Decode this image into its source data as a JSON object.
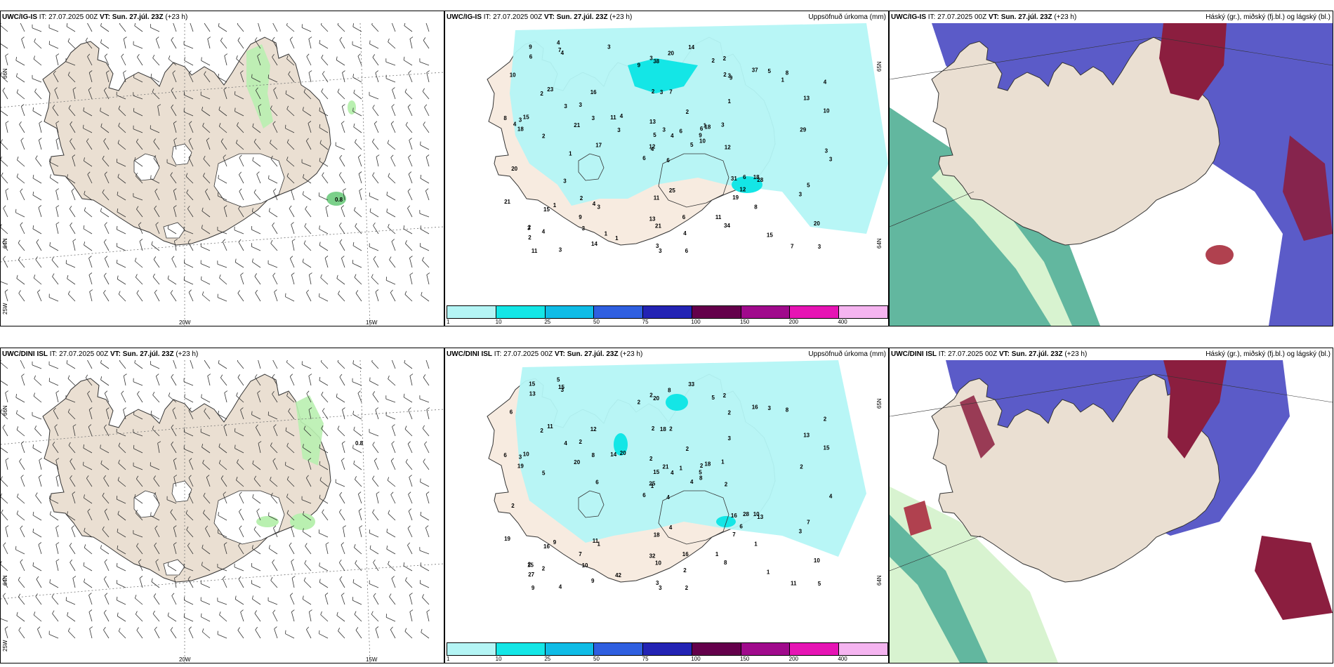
{
  "panels": [
    {
      "model": "UWC/IG-IS",
      "it": "IT: 27.07.2025 00Z",
      "vt_label": "VT:",
      "vt_value": "Sun. 27.júl. 23Z",
      "lead": "(+23 h)",
      "field_title": "",
      "value_label": "0.8",
      "lat_labels": [
        "66N",
        "64N",
        "25W"
      ],
      "lon_labels": [
        "20W",
        "15W"
      ]
    },
    {
      "model": "UWC/IG-IS",
      "it": "IT: 27.07.2025 00Z",
      "vt_label": "VT:",
      "vt_value": "Sun. 27.júl. 23Z",
      "lead": "(+23 h)",
      "field_title": "Uppsöfnuð úrkoma (mm)",
      "lat_labels": [
        "65N",
        "64N"
      ],
      "precip_values": [
        "6",
        "2",
        "4",
        "2",
        "6",
        "3",
        "2",
        "7",
        "3",
        "5",
        "4",
        "3",
        "2",
        "4",
        "6",
        "1",
        "3",
        "2",
        "2",
        "1",
        "4",
        "2",
        "3",
        "3",
        "18",
        "28",
        "23",
        "38",
        "18",
        "31",
        "10",
        "12",
        "13",
        "5",
        "16",
        "37",
        "4",
        "7",
        "20",
        "18",
        "14",
        "11",
        "21",
        "19",
        "14",
        "8",
        "9",
        "11",
        "21",
        "10",
        "15",
        "13",
        "10",
        "12",
        "34",
        "9",
        "7",
        "9",
        "6",
        "8",
        "20",
        "17",
        "15",
        "3",
        "5",
        "4",
        "2",
        "9",
        "3",
        "21",
        "11",
        "1",
        "6",
        "3",
        "3",
        "6",
        "3",
        "20",
        "13",
        "4",
        "6",
        "4",
        "12",
        "5",
        "3",
        "29",
        "25",
        "15",
        "6",
        "11",
        "3",
        "3",
        "3",
        "8",
        "4",
        "3",
        "3",
        "3",
        "2",
        "9",
        "1",
        "3",
        "3",
        "4",
        "3",
        "2",
        "1",
        "1",
        "1",
        "3"
      ],
      "colorbar": {
        "ticks": [
          "1",
          "10",
          "25",
          "50",
          "75",
          "100",
          "150",
          "200",
          "400"
        ],
        "colors": [
          "#b4f5f5",
          "#14e6e6",
          "#0fbce6",
          "#2f5fe0",
          "#2323b4",
          "#64004b",
          "#a00a8c",
          "#e614b4",
          "#f5b4f0"
        ]
      }
    },
    {
      "model": "UWC/IG-IS",
      "it": "IT: 27.07.2025 00Z",
      "vt_label": "VT:",
      "vt_value": "Sun. 27.júl. 23Z",
      "lead": "(+23 h)",
      "field_title": "Háský (gr.), miðský (fj.bl.) og lágský (bl.)"
    },
    {
      "model": "UWC/DINI ISL",
      "it": "IT: 27.07.2025 00Z",
      "vt_label": "VT:",
      "vt_value": "Sun. 27.júl. 23Z",
      "lead": "(+23 h)",
      "field_title": "",
      "value_label": "0.8",
      "lat_labels": [
        "66N",
        "64N",
        "25W"
      ],
      "lon_labels": [
        "20W",
        "15W"
      ]
    },
    {
      "model": "UWC/DINI ISL",
      "it": "IT: 27.07.2025 00Z",
      "vt_label": "VT:",
      "vt_value": "Sun. 27.júl. 23Z",
      "lead": "(+23 h)",
      "field_title": "Uppsöfnuð úrkoma (mm)",
      "lat_labels": [
        "65N",
        "64N"
      ],
      "precip_values": [
        "4",
        "2",
        "1",
        "2",
        "2",
        "1",
        "2",
        "2",
        "2",
        "4",
        "3",
        "5",
        "5",
        "2",
        "6",
        "3",
        "4",
        "2",
        "2",
        "9",
        "20",
        "27",
        "10",
        "18",
        "18",
        "13",
        "11",
        "20",
        "19",
        "16",
        "15",
        "25",
        "32",
        "15",
        "12",
        "16",
        "11",
        "11",
        "10",
        "10",
        "33",
        "14",
        "20",
        "7",
        "9",
        "6",
        "5",
        "9",
        "10",
        "8",
        "16",
        "13",
        "6",
        "6",
        "8",
        "7",
        "15",
        "15",
        "16",
        "8",
        "8",
        "6",
        "10",
        "2",
        "3",
        "5",
        "5",
        "2",
        "21",
        "19",
        "18",
        "42",
        "28",
        "8",
        "15",
        "13",
        "4",
        "2",
        "2",
        "2",
        "1",
        "2",
        "2",
        "7",
        "3",
        "2",
        "4",
        "1",
        "2",
        "1",
        "2",
        "4",
        "1",
        "1",
        "4",
        "3",
        "3",
        "3"
      ],
      "colorbar": {
        "ticks": [
          "1",
          "10",
          "25",
          "50",
          "75",
          "100",
          "150",
          "200",
          "400"
        ],
        "colors": [
          "#b4f5f5",
          "#14e6e6",
          "#0fbce6",
          "#2f5fe0",
          "#2323b4",
          "#64004b",
          "#a00a8c",
          "#e614b4",
          "#f5b4f0"
        ]
      }
    },
    {
      "model": "UWC/DINI ISL",
      "it": "IT: 27.07.2025 00Z",
      "vt_label": "VT:",
      "vt_value": "Sun. 27.júl. 23Z",
      "lead": "(+23 h)",
      "field_title": "Háský (gr.), miðský (fj.bl.) og lágský (bl.)"
    }
  ],
  "colors": {
    "land_beige": "#eadfd2",
    "land_light": "#f7ebe0",
    "precip_light": "#b4f5f5",
    "precip_mid": "#14e6e6",
    "green_light": "#b9f0b0",
    "green_mid": "#7bd08a",
    "cloud_high": "#8b1e3f",
    "cloud_mid": "#5b5bc8",
    "cloud_low_green": "#3cbf8a",
    "ocean_teal": "#62b79f"
  }
}
